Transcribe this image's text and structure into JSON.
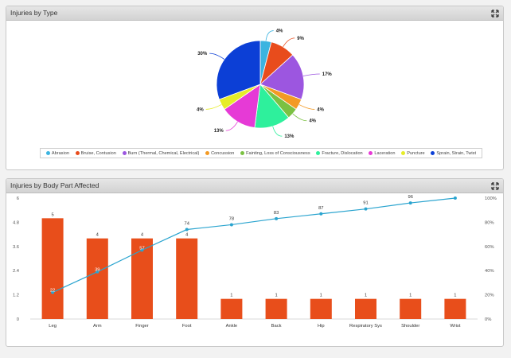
{
  "panels": {
    "pie_title": "Injuries by Type",
    "bar_title": "Injuries by Body Part Affected"
  },
  "chart_data": [
    {
      "type": "pie",
      "title": "Injuries by Type",
      "legend_position": "bottom",
      "slices": [
        {
          "name": "Abrasion",
          "value": 4,
          "label": "4%",
          "color": "#3cb4e0"
        },
        {
          "name": "Bruise, Contusion",
          "value": 9,
          "label": "9%",
          "color": "#e84c1c"
        },
        {
          "name": "Burn (Thermal, Chemical, Electrical)",
          "value": 17,
          "label": "17%",
          "color": "#9c56e0"
        },
        {
          "name": "Concussion",
          "value": 4,
          "label": "4%",
          "color": "#f39a24"
        },
        {
          "name": "Fainting, Loss of Consciousness",
          "value": 4,
          "label": "4%",
          "color": "#7bc142"
        },
        {
          "name": "Fracture, Dislocation",
          "value": 13,
          "label": "13%",
          "color": "#2ef09c"
        },
        {
          "name": "Laceration",
          "value": 13,
          "label": "13%",
          "color": "#e63ad6"
        },
        {
          "name": "Puncture",
          "value": 4,
          "label": "4%",
          "color": "#e6ec28"
        },
        {
          "name": "Sprain, Strain, Twist",
          "value": 30,
          "label": "30%",
          "color": "#0c3fd6"
        }
      ]
    },
    {
      "type": "bar",
      "title": "Injuries by Body Part Affected",
      "categories": [
        "Leg",
        "Arm",
        "Finger",
        "Foot",
        "Ankle",
        "Back",
        "Hip",
        "Respiratory Sys",
        "Shoulder",
        "Wrist"
      ],
      "series": [
        {
          "type": "bar",
          "values": [
            5,
            4,
            4,
            4,
            1,
            1,
            1,
            1,
            1,
            1
          ],
          "color": "#e84e1b"
        },
        {
          "type": "line",
          "values": [
            22,
            39,
            57,
            74,
            78,
            83,
            87,
            91,
            96,
            100
          ],
          "color": "#2aa4cf"
        }
      ],
      "y_left": {
        "min": 0,
        "max": 6,
        "ticks": [
          "0",
          "1.2",
          "2.4",
          "3.6",
          "4.8",
          "6"
        ]
      },
      "y_right": {
        "min": 0,
        "max": 100,
        "ticks": [
          "0%",
          "20%",
          "40%",
          "60%",
          "80%",
          "100%"
        ]
      },
      "grid": false
    }
  ]
}
